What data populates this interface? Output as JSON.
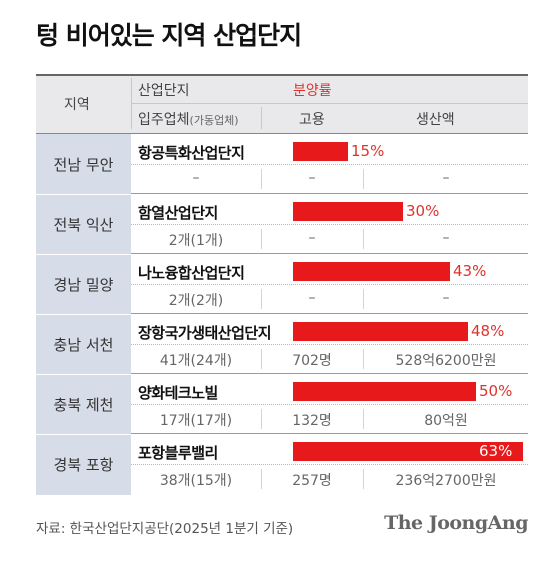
{
  "title": "텅 비어있는 지역 산업단지",
  "header": {
    "region": "지역",
    "complex": "산업단지",
    "rate": "분양률",
    "companies": "입주업체",
    "companies_sub": "(가동업체)",
    "employment": "고용",
    "production": "생산액"
  },
  "chart_data": {
    "type": "bar",
    "title": "텅 비어있는 지역 산업단지",
    "categories": [
      "항공특화산업단지",
      "함열산업단지",
      "나노융합산업단지",
      "장항국가생태산업단지",
      "양화테크노빌",
      "포항블루밸리"
    ],
    "series": [
      {
        "name": "분양률",
        "values": [
          15,
          30,
          43,
          48,
          50,
          63
        ]
      }
    ],
    "ylim": [
      0,
      63
    ]
  },
  "rows": [
    {
      "region": "전남 무안",
      "name": "항공특화산업단지",
      "pct_label": "15%",
      "companies": "–",
      "employment": "–",
      "production": "–"
    },
    {
      "region": "전북 익산",
      "name": "함열산업단지",
      "pct_label": "30%",
      "companies": "2개(1개)",
      "employment": "–",
      "production": "–"
    },
    {
      "region": "경남 밀양",
      "name": "나노융합산업단지",
      "pct_label": "43%",
      "companies": "2개(2개)",
      "employment": "–",
      "production": "–"
    },
    {
      "region": "충남 서천",
      "name": "장항국가생태산업단지",
      "pct_label": "48%",
      "companies": "41개(24개)",
      "employment": "702명",
      "production": "528억6200만원"
    },
    {
      "region": "충북 제천",
      "name": "양화테크노빌",
      "pct_label": "50%",
      "companies": "17개(17개)",
      "employment": "132명",
      "production": "80억원"
    },
    {
      "region": "경북 포항",
      "name": "포항블루밸리",
      "pct_label": "63%",
      "companies": "38개(15개)",
      "employment": "257명",
      "production": "236억2700만원"
    }
  ],
  "source": "자료: 한국산업단지공단(2025년 1분기 기준)",
  "logo": "The JoongAng",
  "colors": {
    "bar": "#e8191b",
    "region_bg": "#d6dce8",
    "header_bg": "#e9e9ec",
    "accent_text": "#e0322d"
  }
}
